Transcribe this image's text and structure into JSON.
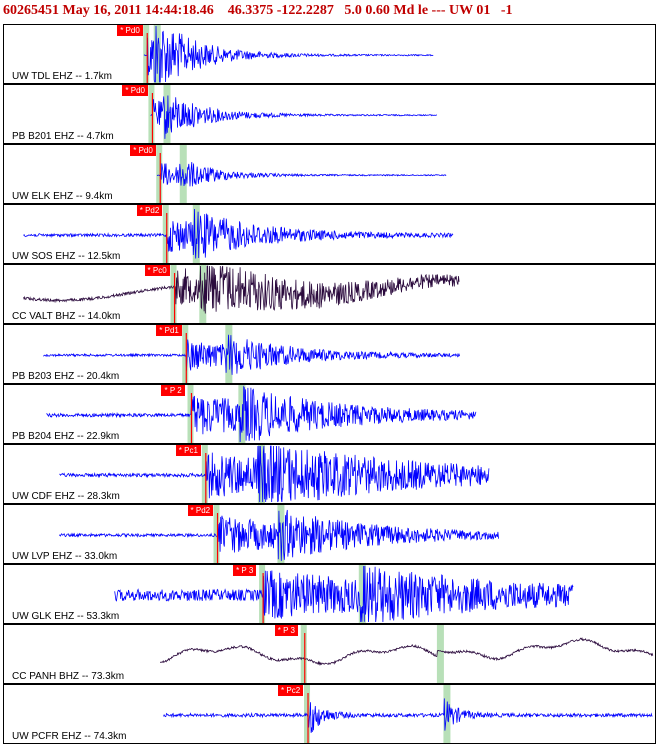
{
  "header": {
    "title": "60265451 May 16, 2011 14:44:18.46    46.3375 -122.2287   5.0 0.60 Md le --- UW 01   -1"
  },
  "colors": {
    "header_text": "#c00000",
    "pick_marker": "#ff0000",
    "pick_line": "#ff0000",
    "arrival_band": "#b8e0b8",
    "ehz_trace": "#0000ff",
    "bhz_trace": "#2b0a3d"
  },
  "traces": [
    {
      "label": "UW TDL EHZ -- 1.7km",
      "pick": "* Pd0",
      "channel": "EHZ",
      "start": 0.215,
      "end": 0.66,
      "pick_pos": 0.22,
      "band": 0.23,
      "amp": 0.9,
      "noise": 0.02,
      "burst": 0.07
    },
    {
      "label": "PB B201 EHZ -- 4.7km",
      "pick": "* Pd0",
      "channel": "EHZ",
      "start": 0.225,
      "end": 0.665,
      "pick_pos": 0.228,
      "band": 0.245,
      "amp": 0.55,
      "noise": 0.02,
      "burst": 0.07
    },
    {
      "label": "UW ELK EHZ -- 9.4km",
      "pick": "* Pd0",
      "channel": "EHZ",
      "start": 0.235,
      "end": 0.68,
      "pick_pos": 0.24,
      "band": 0.27,
      "amp": 0.45,
      "noise": 0.02,
      "burst": 0.06
    },
    {
      "label": "UW SOS EHZ -- 12.5km",
      "pick": "* Pd2",
      "channel": "EHZ",
      "start": 0.03,
      "end": 0.69,
      "pick_pos": 0.25,
      "band": 0.29,
      "amp": 0.6,
      "noise": 0.05,
      "burst": 0.12
    },
    {
      "label": "CC VALT BHZ -- 14.0km",
      "pick": "* Pc0",
      "channel": "BHZ",
      "start": 0.03,
      "end": 0.7,
      "pick_pos": 0.262,
      "band": 0.3,
      "amp": 0.6,
      "noise": 0.05,
      "burst": 0.25
    },
    {
      "label": "PB B203 EHZ -- 20.4km",
      "pick": "* Pd1",
      "channel": "EHZ",
      "start": 0.06,
      "end": 0.7,
      "pick_pos": 0.28,
      "band": 0.34,
      "amp": 0.55,
      "noise": 0.04,
      "burst": 0.12
    },
    {
      "label": "PB B204 EHZ -- 22.9km",
      "pick": "* P 2",
      "channel": "EHZ",
      "start": 0.065,
      "end": 0.725,
      "pick_pos": 0.288,
      "band": 0.36,
      "amp": 0.7,
      "noise": 0.06,
      "burst": 0.18
    },
    {
      "label": "UW CDF EHZ -- 28.3km",
      "pick": "* Pc1",
      "channel": "EHZ",
      "start": 0.085,
      "end": 0.745,
      "pick_pos": 0.31,
      "band": 0.39,
      "amp": 0.75,
      "noise": 0.06,
      "burst": 0.3
    },
    {
      "label": "UW LVP EHZ -- 33.0km",
      "pick": "* Pd2",
      "channel": "EHZ",
      "start": 0.085,
      "end": 0.76,
      "pick_pos": 0.328,
      "band": 0.42,
      "amp": 0.65,
      "noise": 0.05,
      "burst": 0.18
    },
    {
      "label": "UW GLK EHZ -- 53.3km",
      "pick": "* P 3",
      "channel": "EHZ",
      "start": 0.17,
      "end": 0.875,
      "pick_pos": 0.398,
      "band": 0.545,
      "amp": 0.7,
      "noise": 0.2,
      "burst": 0.25
    },
    {
      "label": "CC PANH BHZ -- 73.3km",
      "pick": "* P 3",
      "channel": "BHZ",
      "start": 0.24,
      "end": 1.0,
      "pick_pos": 0.462,
      "band": 0.665,
      "amp": 0.5,
      "noise": 0.0,
      "burst": 0.0
    },
    {
      "label": "UW PCFR EHZ -- 74.3km",
      "pick": "* Pc2",
      "channel": "EHZ",
      "start": 0.245,
      "end": 1.0,
      "pick_pos": 0.467,
      "band": 0.675,
      "amp": 0.75,
      "noise": 0.06,
      "burst": 0.02
    }
  ]
}
